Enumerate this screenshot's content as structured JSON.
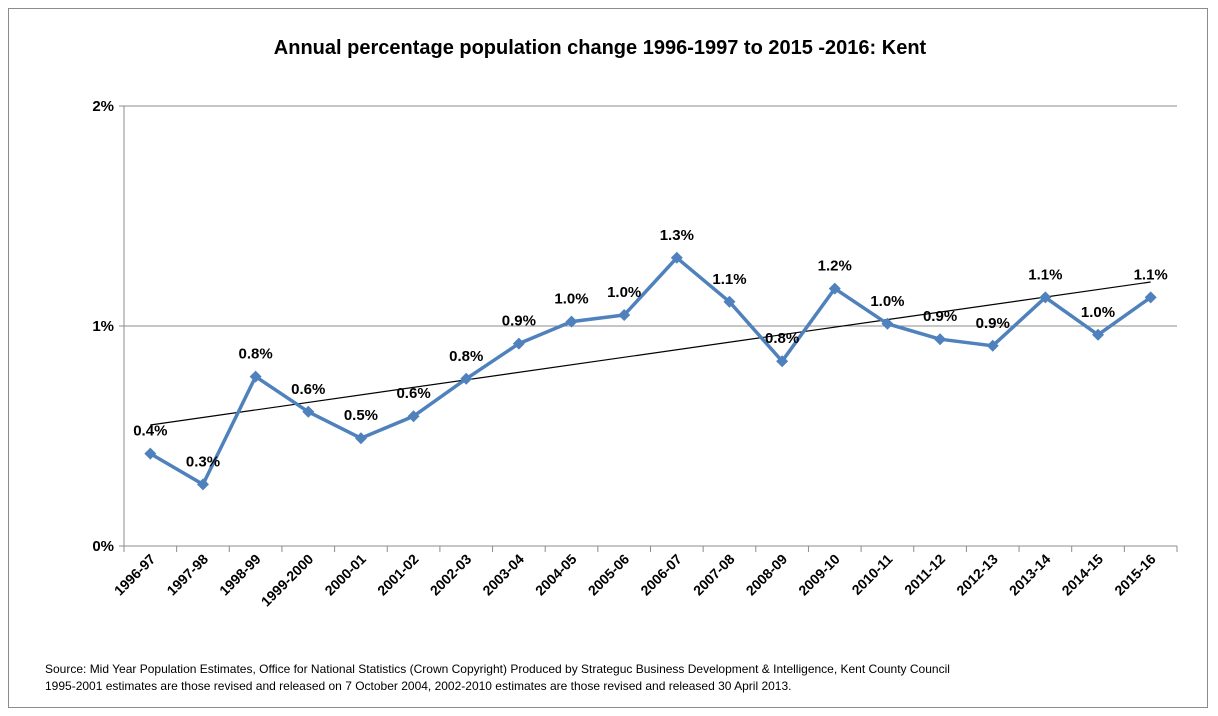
{
  "chart_data": {
    "type": "line",
    "title": "Annual percentage population change 1996-1997 to 2015 -2016: Kent",
    "xlabel": "",
    "ylabel": "",
    "categories": [
      "1996-97",
      "1997-98",
      "1998-99",
      "1999-2000",
      "2000-01",
      "2001-02",
      "2002-03",
      "2003-04",
      "2004-05",
      "2005-06",
      "2006-07",
      "2007-08",
      "2008-09",
      "2009-10",
      "2010-11",
      "2011-12",
      "2012-13",
      "2013-14",
      "2014-15",
      "2015-16"
    ],
    "series": [
      {
        "values": [
          0.42,
          0.28,
          0.77,
          0.61,
          0.49,
          0.59,
          0.76,
          0.92,
          1.02,
          1.05,
          1.31,
          1.11,
          0.84,
          1.17,
          1.01,
          0.94,
          0.91,
          1.13,
          0.96,
          1.13
        ],
        "labels": [
          "0.4%",
          "0.3%",
          "0.8%",
          "0.6%",
          "0.5%",
          "0.6%",
          "0.8%",
          "0.9%",
          "1.0%",
          "1.0%",
          "1.3%",
          "1.1%",
          "0.8%",
          "1.2%",
          "1.0%",
          "0.9%",
          "0.9%",
          "1.1%",
          "1.0%",
          "1.1%"
        ],
        "color": "#4f81bd"
      }
    ],
    "trendline": {
      "type": "linear",
      "start": 0.55,
      "end": 1.2,
      "color": "#000000"
    },
    "ylim": [
      0,
      2
    ],
    "yticks": [
      0,
      1,
      2
    ],
    "ytick_labels": [
      "0%",
      "1%",
      "2%"
    ],
    "grid": "horizontal",
    "legend": "none"
  },
  "source": {
    "line1": "Source: Mid Year Population Estimates, Office for National Statistics (Crown Copyright) Produced by  Strateguc Business  Development & Intelligence, Kent County Council",
    "line2": "1995-2001 estimates are those revised and released on 7 October 2004, 2002-2010 estimates are those revised and released 30 April 2013."
  }
}
